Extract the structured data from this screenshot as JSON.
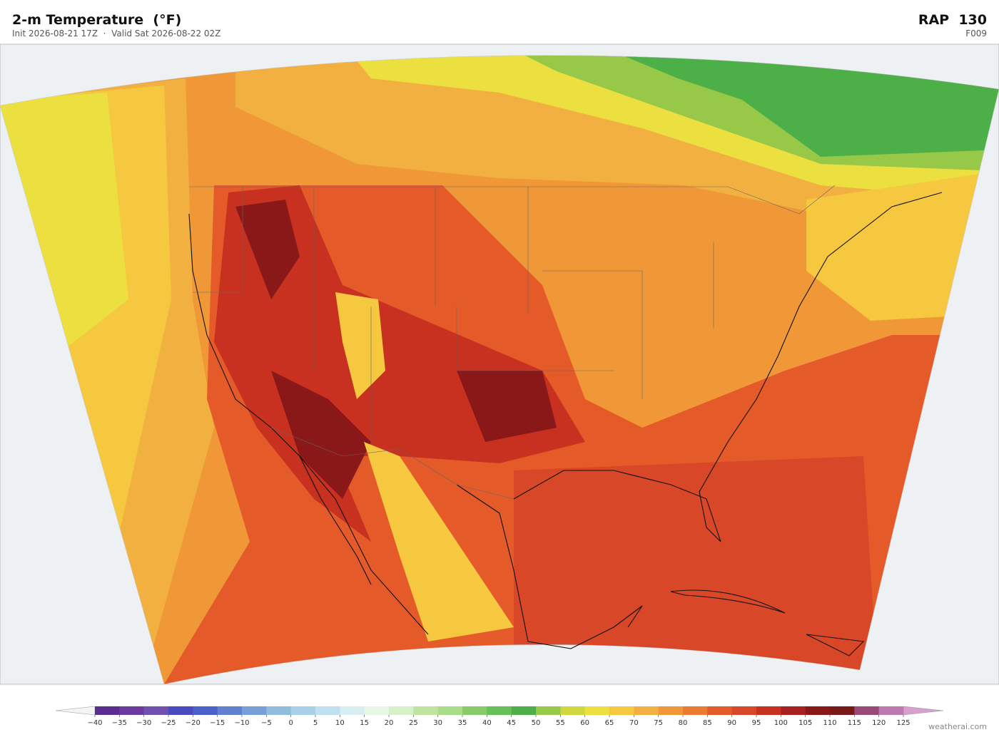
{
  "header": {
    "title": "2-m Temperature  (°F)",
    "subtitle": "Init 2026-08-21 17Z  ·  Valid Sat 2026-08-22 02Z",
    "model": "RAP  130",
    "forecast_hour": "F009"
  },
  "colorbar": {
    "ticks": [
      {
        "value": -40,
        "label": "−40"
      },
      {
        "value": -35,
        "label": "−35"
      },
      {
        "value": -30,
        "label": "−30"
      },
      {
        "value": -25,
        "label": "−25"
      },
      {
        "value": -20,
        "label": "−20"
      },
      {
        "value": -15,
        "label": "−15"
      },
      {
        "value": -10,
        "label": "−10"
      },
      {
        "value": -5,
        "label": "−5"
      },
      0,
      5,
      10,
      15,
      20,
      25,
      30,
      35,
      40,
      45,
      50,
      55,
      60,
      65,
      70,
      75,
      80,
      85,
      90,
      95,
      100,
      105,
      110,
      115,
      120,
      125
    ],
    "colors": [
      "#5a2d91",
      "#6a3a9e",
      "#7050b0",
      "#4a4ac0",
      "#4a60cc",
      "#6080d0",
      "#78a0d8",
      "#90bce0",
      "#a8d0e8",
      "#c0e0f0",
      "#d8eef0",
      "#e8f6e8",
      "#d8f0c8",
      "#c0e4a0",
      "#a8dc88",
      "#88cc68",
      "#68c058",
      "#4caf48",
      "#98c848",
      "#d0d840",
      "#ece040",
      "#f5c840",
      "#f2b040",
      "#f09838",
      "#ec7a30",
      "#e45a28",
      "#d84828",
      "#c83020",
      "#a82020",
      "#8a1818",
      "#781818",
      "#9a4878",
      "#c078b0"
    ],
    "extend_colors": [
      "#f4f4f4",
      "#d8a0cc"
    ]
  },
  "watermark": "weatherai.com"
}
